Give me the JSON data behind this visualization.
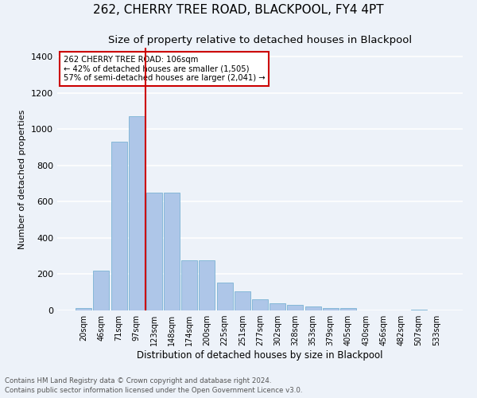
{
  "title1": "262, CHERRY TREE ROAD, BLACKPOOL, FY4 4PT",
  "title2": "Size of property relative to detached houses in Blackpool",
  "xlabel": "Distribution of detached houses by size in Blackpool",
  "ylabel": "Number of detached properties",
  "footer1": "Contains HM Land Registry data © Crown copyright and database right 2024.",
  "footer2": "Contains public sector information licensed under the Open Government Licence v3.0.",
  "annotation_line1": "262 CHERRY TREE ROAD: 106sqm",
  "annotation_line2": "← 42% of detached houses are smaller (1,505)",
  "annotation_line3": "57% of semi-detached houses are larger (2,041) →",
  "bar_labels": [
    "20sqm",
    "46sqm",
    "71sqm",
    "97sqm",
    "123sqm",
    "148sqm",
    "174sqm",
    "200sqm",
    "225sqm",
    "251sqm",
    "277sqm",
    "302sqm",
    "328sqm",
    "353sqm",
    "379sqm",
    "405sqm",
    "430sqm",
    "456sqm",
    "482sqm",
    "507sqm",
    "533sqm"
  ],
  "bar_values": [
    15,
    220,
    930,
    1070,
    650,
    650,
    275,
    275,
    155,
    105,
    60,
    40,
    30,
    20,
    15,
    15,
    0,
    0,
    0,
    5,
    0
  ],
  "bar_color": "#aec6e8",
  "bar_edge_color": "#7ab3d4",
  "vline_x": 3.5,
  "vline_color": "#cc0000",
  "annotation_box_color": "#cc0000",
  "ylim": [
    0,
    1450
  ],
  "yticks": [
    0,
    200,
    400,
    600,
    800,
    1000,
    1200,
    1400
  ],
  "bg_color": "#edf2f9",
  "plot_bg_color": "#edf2f9",
  "grid_color": "#ffffff",
  "title1_fontsize": 11,
  "title2_fontsize": 9.5
}
